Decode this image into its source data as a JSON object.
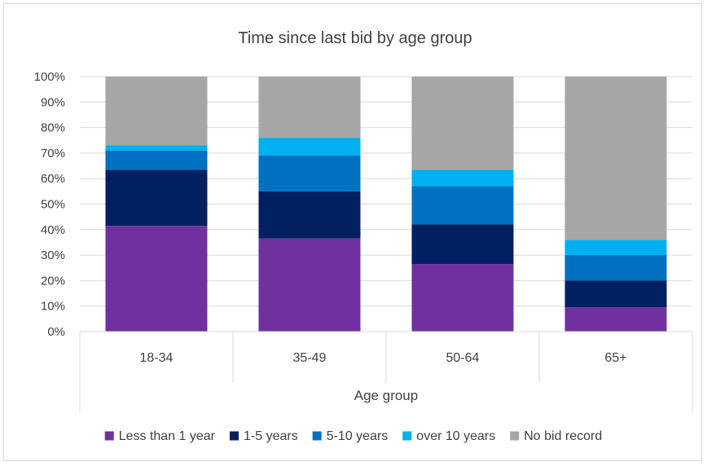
{
  "chart_data": {
    "type": "bar",
    "stacked": true,
    "title": "Time since last bid by age group",
    "xlabel": "Age group",
    "ylabel": "",
    "ylim": [
      0,
      100
    ],
    "y_ticks": [
      "0%",
      "10%",
      "20%",
      "30%",
      "40%",
      "50%",
      "60%",
      "70%",
      "80%",
      "90%",
      "100%"
    ],
    "categories": [
      "18-34",
      "35-49",
      "50-64",
      "65+"
    ],
    "grid": true,
    "legend_position": "bottom",
    "series": [
      {
        "name": "Less than 1 year",
        "color": "#7030a0",
        "values": [
          41.5,
          36.5,
          26.5,
          9.5
        ]
      },
      {
        "name": "1-5 years",
        "color": "#002060",
        "values": [
          22,
          18.5,
          15.5,
          10.5
        ]
      },
      {
        "name": "5-10 years",
        "color": "#0070c0",
        "values": [
          7.5,
          14,
          15,
          10
        ]
      },
      {
        "name": "over 10 years",
        "color": "#00b0f0",
        "values": [
          2,
          7,
          6.5,
          6
        ]
      },
      {
        "name": "No bid record",
        "color": "#a6a6a6",
        "values": [
          27,
          24,
          36.5,
          64
        ]
      }
    ]
  }
}
